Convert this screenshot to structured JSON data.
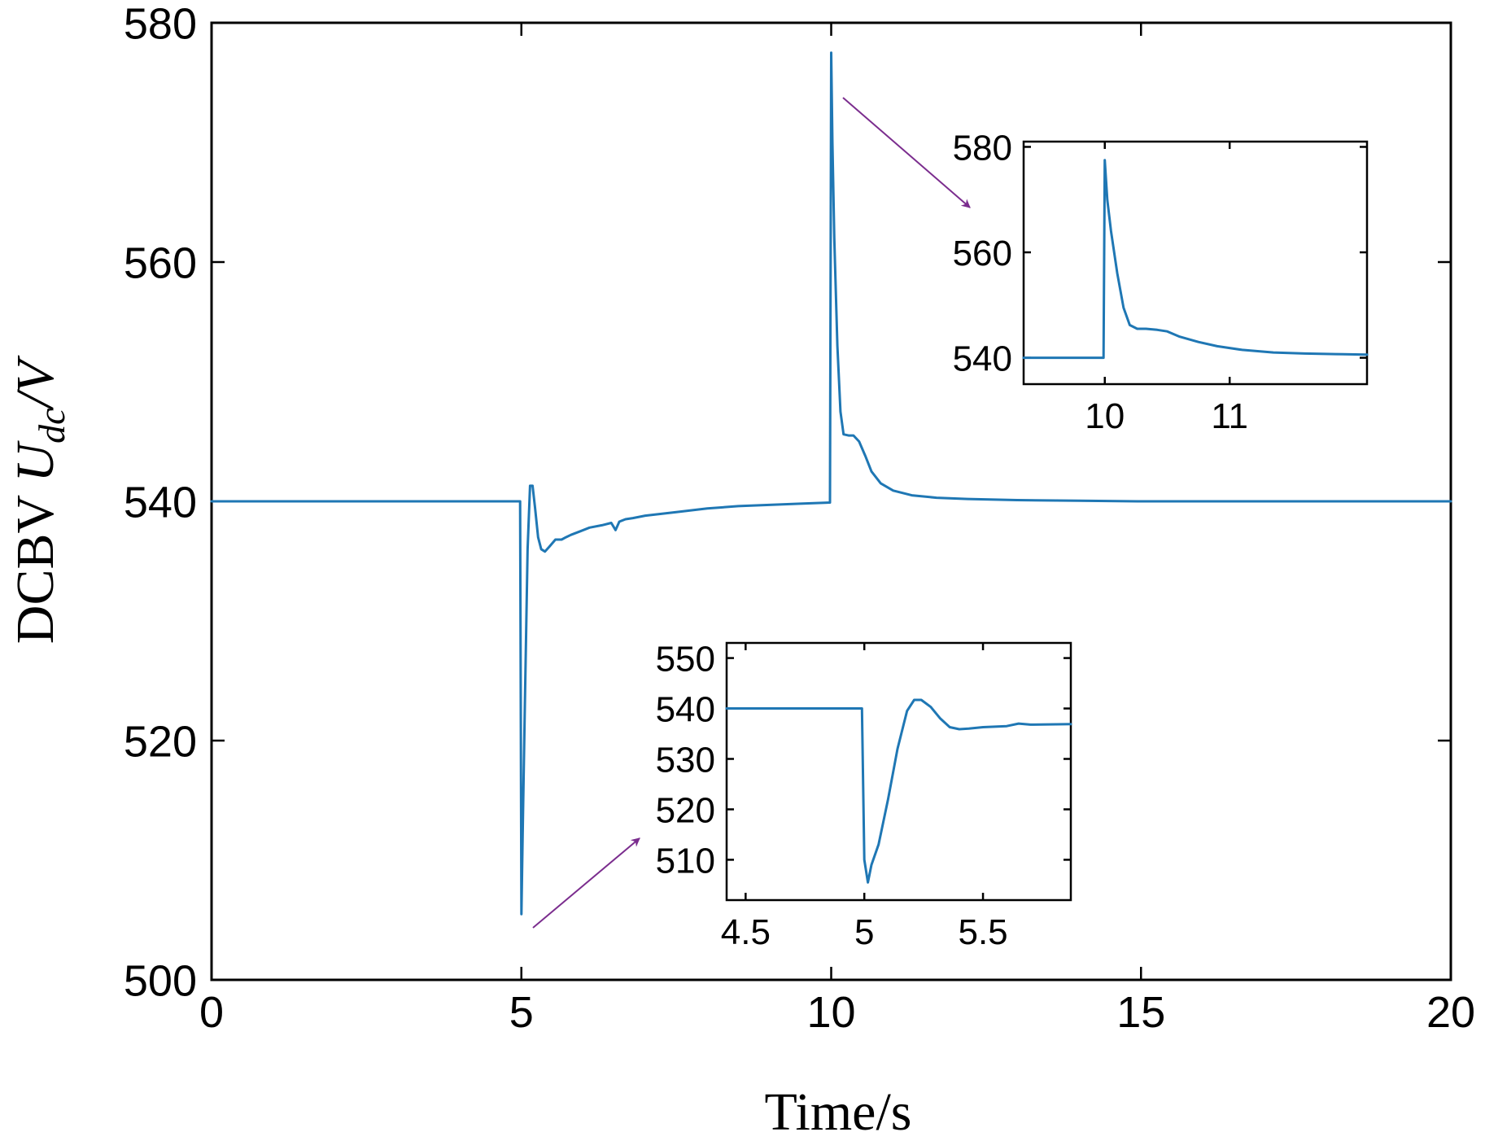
{
  "colors": {
    "series": "#1f77b4",
    "arrow": "#7b2d8e"
  },
  "chart_data": [
    {
      "id": "main",
      "type": "line",
      "title": "",
      "xlabel": "Time/s",
      "ylabel_prefix": "DCBV ",
      "ylabel_var": "U",
      "ylabel_sub": "dc",
      "ylabel_suffix": "/V",
      "xlim": [
        0,
        20
      ],
      "ylim": [
        500,
        580
      ],
      "xticks": [
        0,
        5,
        10,
        15,
        20
      ],
      "yticks": [
        500,
        520,
        540,
        560,
        580
      ],
      "grid": false,
      "series": [
        {
          "name": "Udc",
          "x": [
            0,
            4.98,
            5.0,
            5.02,
            5.06,
            5.1,
            5.14,
            5.18,
            5.22,
            5.27,
            5.32,
            5.38,
            5.45,
            5.55,
            5.65,
            5.72,
            5.8,
            5.95,
            6.1,
            6.3,
            6.45,
            6.52,
            6.58,
            6.68,
            6.8,
            7.0,
            7.5,
            8.0,
            8.5,
            9.0,
            9.5,
            9.98,
            10.0,
            10.02,
            10.05,
            10.1,
            10.15,
            10.2,
            10.28,
            10.36,
            10.45,
            10.55,
            10.65,
            10.8,
            11.0,
            11.3,
            11.7,
            12.2,
            13.0,
            14.0,
            15.0,
            16.0,
            18.0,
            20.0
          ],
          "y": [
            540,
            540,
            505.5,
            512,
            524,
            536,
            541.3,
            541.3,
            539.5,
            537,
            536,
            535.8,
            536.2,
            536.8,
            536.8,
            537,
            537.2,
            537.5,
            537.8,
            538,
            538.2,
            537.6,
            538.3,
            538.5,
            538.6,
            538.8,
            539.1,
            539.4,
            539.6,
            539.7,
            539.8,
            539.9,
            577.5,
            570,
            562,
            553,
            547.5,
            545.6,
            545.5,
            545.5,
            545,
            543.8,
            542.5,
            541.5,
            540.9,
            540.5,
            540.3,
            540.2,
            540.1,
            540.05,
            540,
            540,
            540,
            540
          ]
        }
      ]
    },
    {
      "id": "inset-top",
      "type": "line",
      "xlim": [
        9.35,
        12.1
      ],
      "ylim": [
        535,
        581
      ],
      "xticks": [
        10,
        11
      ],
      "yticks": [
        540,
        560,
        580
      ],
      "grid": false,
      "series": [
        {
          "name": "Udc",
          "x": [
            9.35,
            9.99,
            10.0,
            10.02,
            10.05,
            10.1,
            10.15,
            10.2,
            10.26,
            10.33,
            10.42,
            10.5,
            10.6,
            10.75,
            10.9,
            11.1,
            11.35,
            11.6,
            11.85,
            12.1
          ],
          "y": [
            540,
            540,
            577.5,
            570,
            564,
            556,
            549.5,
            546.2,
            545.5,
            545.5,
            545.3,
            545,
            544,
            543,
            542.2,
            541.5,
            541,
            540.8,
            540.7,
            540.6
          ]
        }
      ]
    },
    {
      "id": "inset-bottom",
      "type": "line",
      "xlim": [
        4.42,
        5.87
      ],
      "ylim": [
        502,
        553
      ],
      "xticks": [
        4.5,
        5,
        5.5
      ],
      "yticks": [
        510,
        520,
        530,
        540,
        550
      ],
      "grid": false,
      "series": [
        {
          "name": "Udc",
          "x": [
            4.42,
            4.99,
            5.0,
            5.015,
            5.03,
            5.06,
            5.1,
            5.14,
            5.18,
            5.21,
            5.24,
            5.28,
            5.32,
            5.36,
            5.4,
            5.44,
            5.5,
            5.6,
            5.65,
            5.7,
            5.87
          ],
          "y": [
            540,
            540,
            510,
            505.5,
            509,
            513,
            522,
            532,
            539.5,
            541.7,
            541.7,
            540.3,
            538,
            536.3,
            535.9,
            536,
            536.3,
            536.5,
            537,
            536.8,
            536.9
          ]
        }
      ]
    }
  ]
}
